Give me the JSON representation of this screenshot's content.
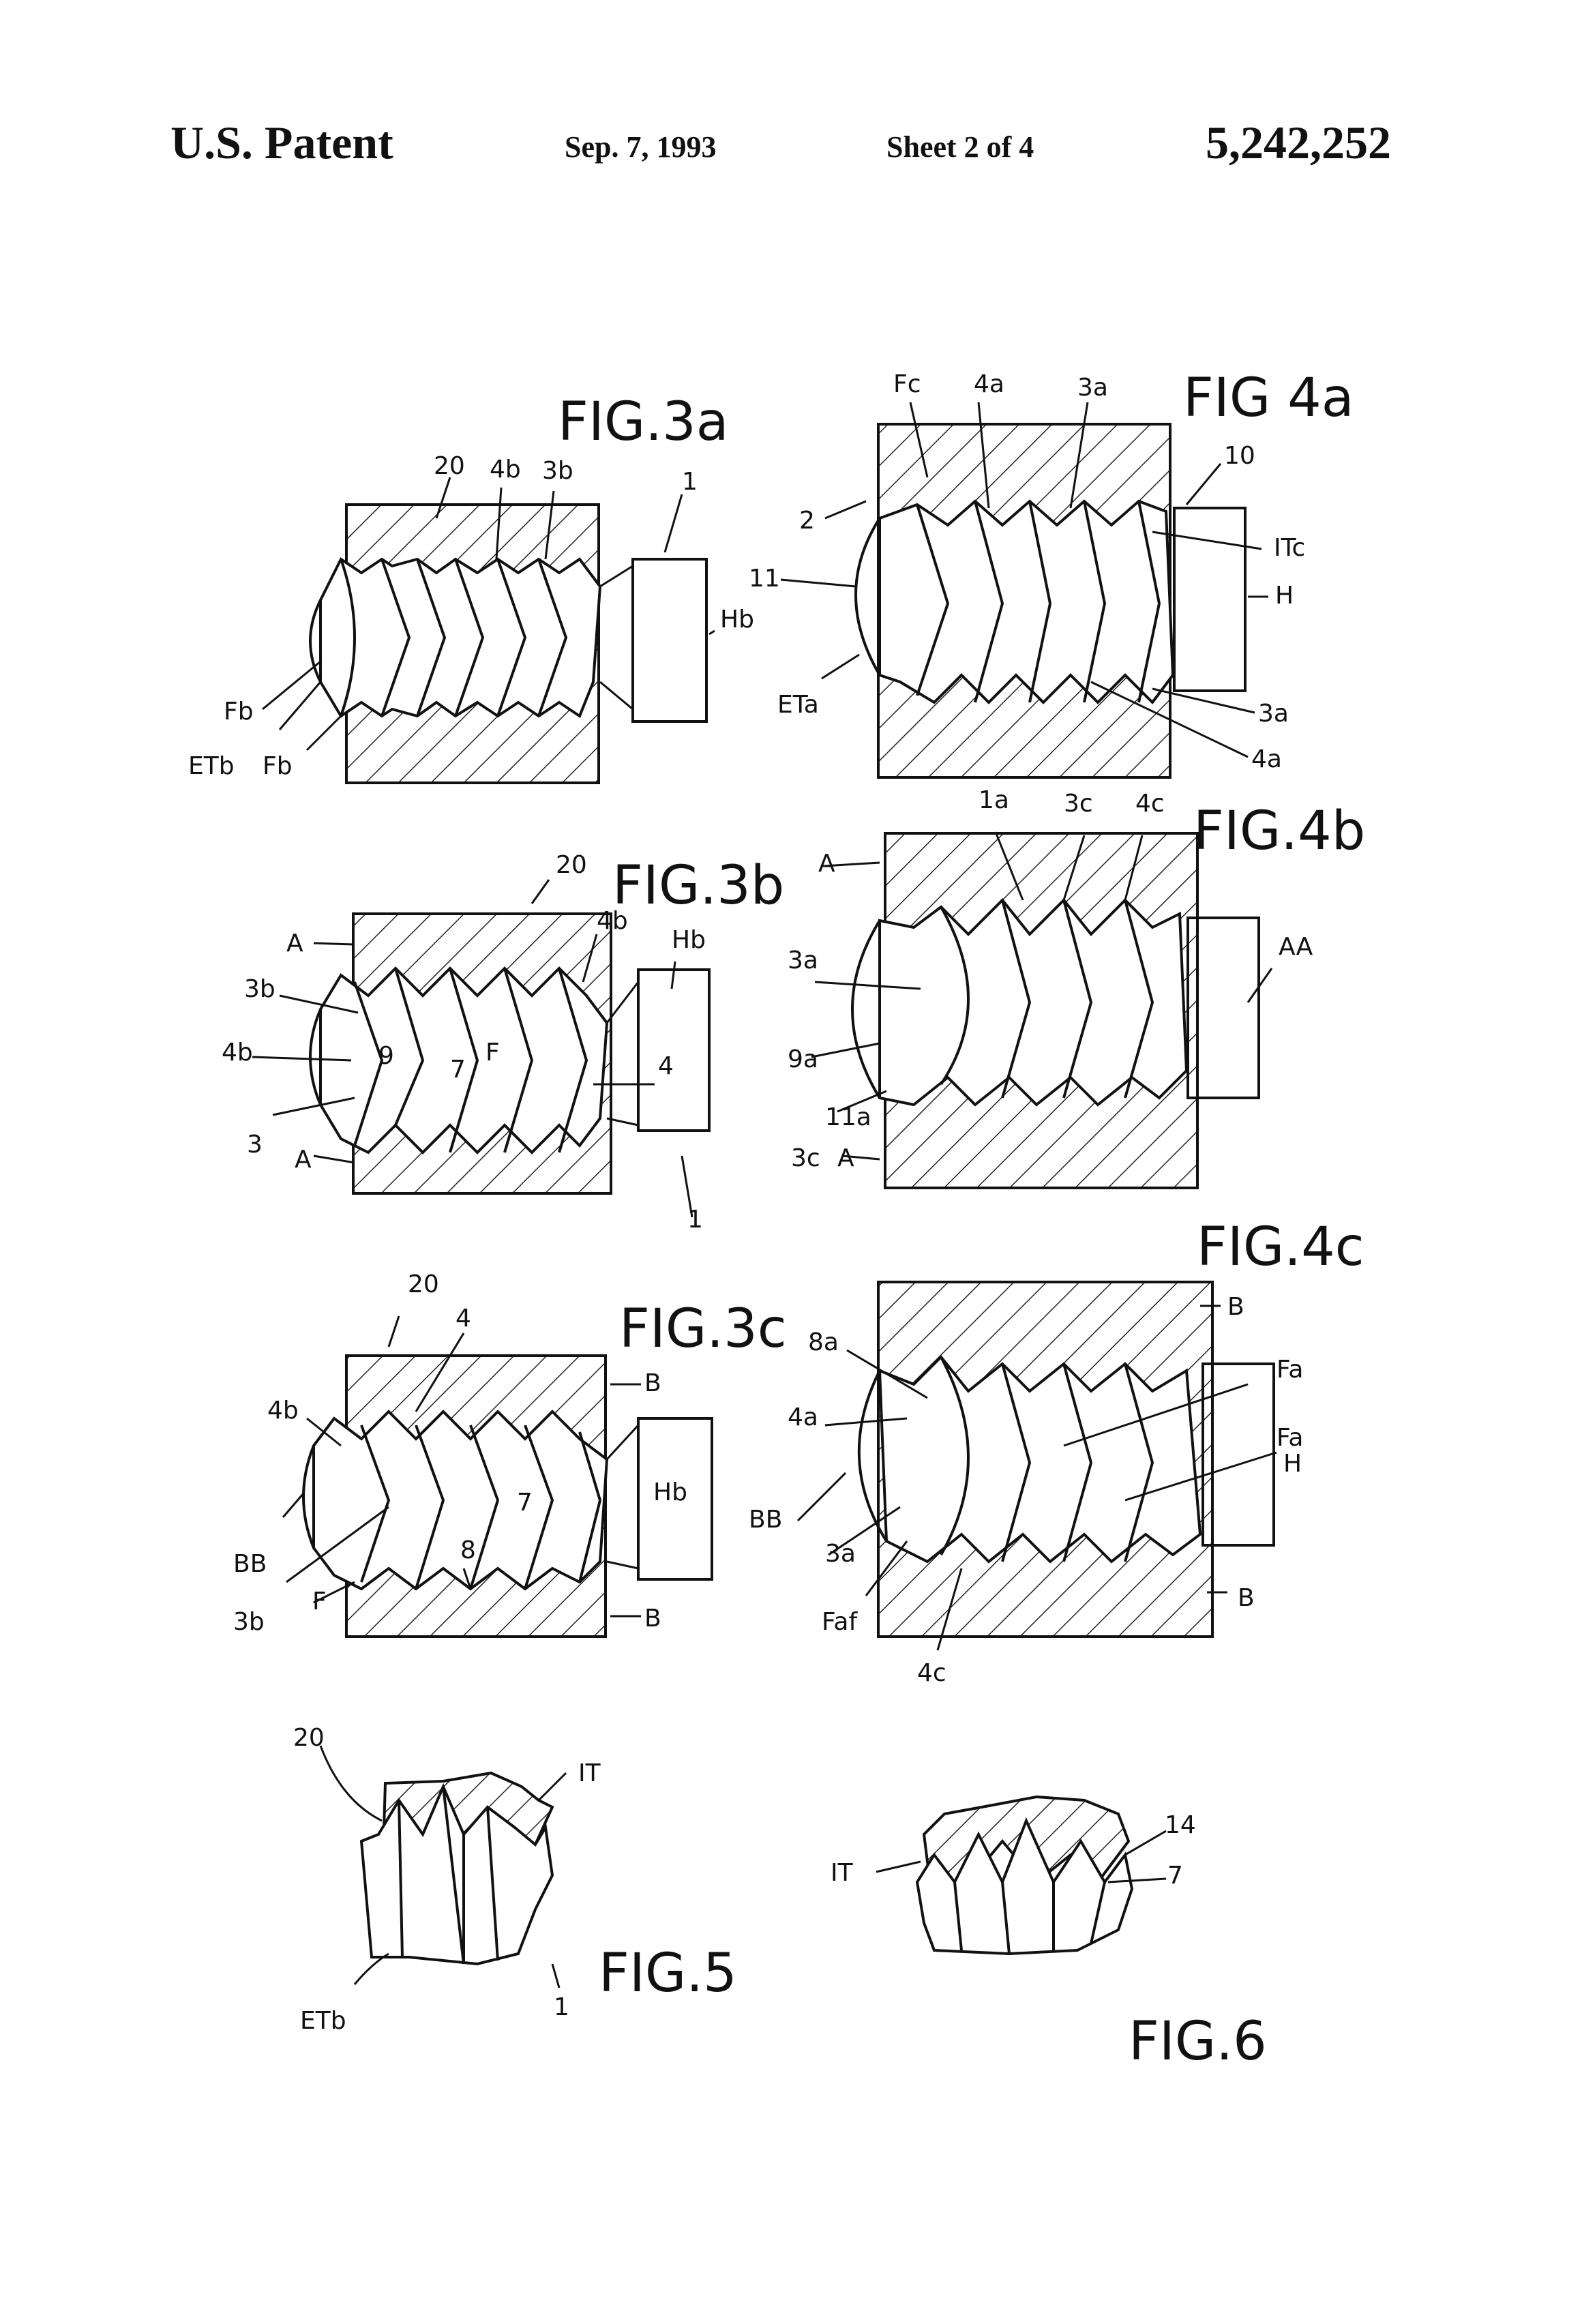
{
  "header": {
    "left": "U.S. Patent",
    "date": "Sep. 7, 1993",
    "sheet": "Sheet 2 of 4",
    "number": "5,242,252"
  },
  "figures": {
    "fig3a": {
      "title": "FIG.3a",
      "labels": [
        "20",
        "4b",
        "3b",
        "1",
        "Hb",
        "Fb",
        "ETb",
        "Fb"
      ]
    },
    "fig3b": {
      "title": "FIG.3b",
      "labels": [
        "20",
        "A",
        "4b",
        "Hb",
        "3b",
        "4b",
        "9",
        "7",
        "F",
        "4",
        "3",
        "A",
        "1"
      ]
    },
    "fig3c": {
      "title": "FIG.3c",
      "labels": [
        "20",
        "4",
        "B",
        "4b",
        "Hb",
        "BB",
        "8",
        "7",
        "3b",
        "F",
        "B"
      ]
    },
    "fig4a": {
      "title": "FIG 4a",
      "labels": [
        "Fc",
        "4a",
        "3a",
        "10",
        "2",
        "11",
        "ITc",
        "H",
        "ETa",
        "3a",
        "4a"
      ]
    },
    "fig4b": {
      "title": "FIG.4b",
      "labels": [
        "1a",
        "3c",
        "4c",
        "A",
        "AA",
        "3a",
        "9a",
        "11a",
        "3c",
        "A"
      ]
    },
    "fig4c": {
      "title": "FIG.4c",
      "labels": [
        "B",
        "8a",
        "Fa",
        "4a",
        "Fa",
        "H",
        "BB",
        "3a",
        "Faf",
        "4c",
        "B"
      ]
    },
    "fig5": {
      "title": "FIG.5",
      "labels": [
        "20",
        "IT",
        "ETb",
        "1"
      ]
    },
    "fig6": {
      "title": "FIG.6",
      "labels": [
        "14",
        "IT",
        "7"
      ]
    }
  }
}
